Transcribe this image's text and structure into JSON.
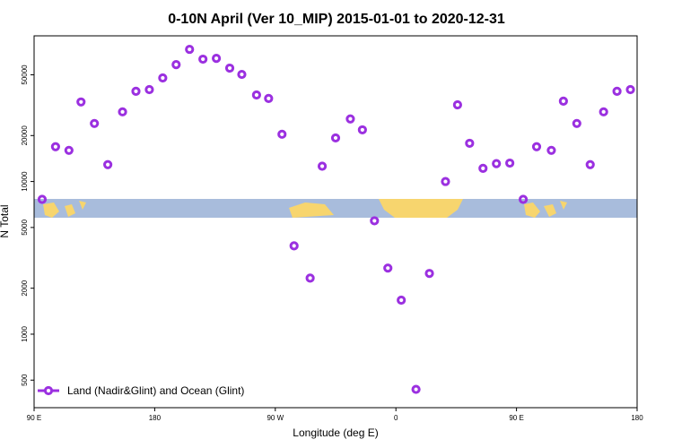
{
  "chart_data": {
    "type": "scatter",
    "title": "0-10N April (Ver 10_MIP)   2015-01-01 to 2020-12-31",
    "x_label": "Longitude (deg E)",
    "y_label": "N Total",
    "log_y": true,
    "xlim": [
      90,
      540
    ],
    "ylim": [
      330,
      90000
    ],
    "xticks": [
      {
        "value": 90,
        "label": "90 E"
      },
      {
        "value": 180,
        "label": "180"
      },
      {
        "value": 270,
        "label": "90 W"
      },
      {
        "value": 360,
        "label": "0"
      },
      {
        "value": 450,
        "label": "90 E"
      },
      {
        "value": 540,
        "label": "180"
      }
    ],
    "yticks": [
      500,
      1000,
      2000,
      5000,
      10000,
      20000,
      50000
    ],
    "legend_position": "lower left",
    "series": [
      {
        "name": "Land (Nadir&Glint) and Ocean (Glint)",
        "color": "#9b30e0",
        "x": [
          96,
          106,
          116,
          125,
          135,
          145,
          156,
          166,
          176,
          186,
          196,
          206,
          216,
          226,
          236,
          245,
          256,
          265,
          275,
          284,
          296,
          305,
          315,
          326,
          335,
          344,
          354,
          364,
          375,
          385,
          397,
          406,
          415,
          425,
          435,
          445,
          455,
          465,
          476,
          485,
          495,
          505,
          515,
          525,
          535
        ],
        "values": [
          7640,
          16900,
          16000,
          33200,
          24000,
          12900,
          28600,
          39000,
          40000,
          47700,
          58300,
          73400,
          63300,
          64100,
          55300,
          50300,
          36900,
          35000,
          20400,
          3790,
          2330,
          12600,
          19300,
          25700,
          21800,
          5530,
          2710,
          1670,
          435,
          2500,
          10000,
          31800,
          17800,
          12200,
          13100,
          13200,
          7640,
          16900,
          16000,
          33600,
          24000,
          12900,
          28600,
          39000,
          40000
        ]
      }
    ]
  }
}
